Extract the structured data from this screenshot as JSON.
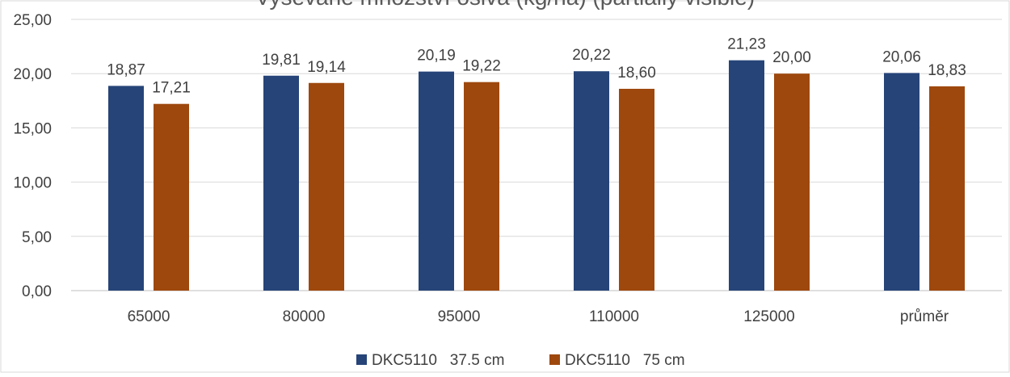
{
  "chart_data": {
    "type": "bar",
    "title": "Vysévané množství osiva (kg/ha) (partially visible)",
    "categories": [
      "65000",
      "80000",
      "95000",
      "110000",
      "125000",
      "průměr"
    ],
    "series": [
      {
        "name": "DKC5110   37.5 cm",
        "color": "#264478",
        "values": [
          18.87,
          19.81,
          20.19,
          20.22,
          21.23,
          20.06
        ],
        "labels": [
          "18,87",
          "19,81",
          "20,19",
          "20,22",
          "21,23",
          "20,06"
        ]
      },
      {
        "name": "DKC5110   75 cm",
        "color": "#9E480E",
        "values": [
          17.21,
          19.14,
          19.22,
          18.6,
          20.0,
          18.83
        ],
        "labels": [
          "17,21",
          "19,14",
          "19,22",
          "18,60",
          "20,00",
          "18,83"
        ]
      }
    ],
    "ylim": [
      0,
      25
    ],
    "yticks": [
      0,
      5,
      10,
      15,
      20,
      25
    ],
    "ytick_labels": [
      "0,00",
      "5,00",
      "10,00",
      "15,00",
      "20,00",
      "25,00"
    ],
    "grid": true,
    "legend_position": "bottom"
  }
}
